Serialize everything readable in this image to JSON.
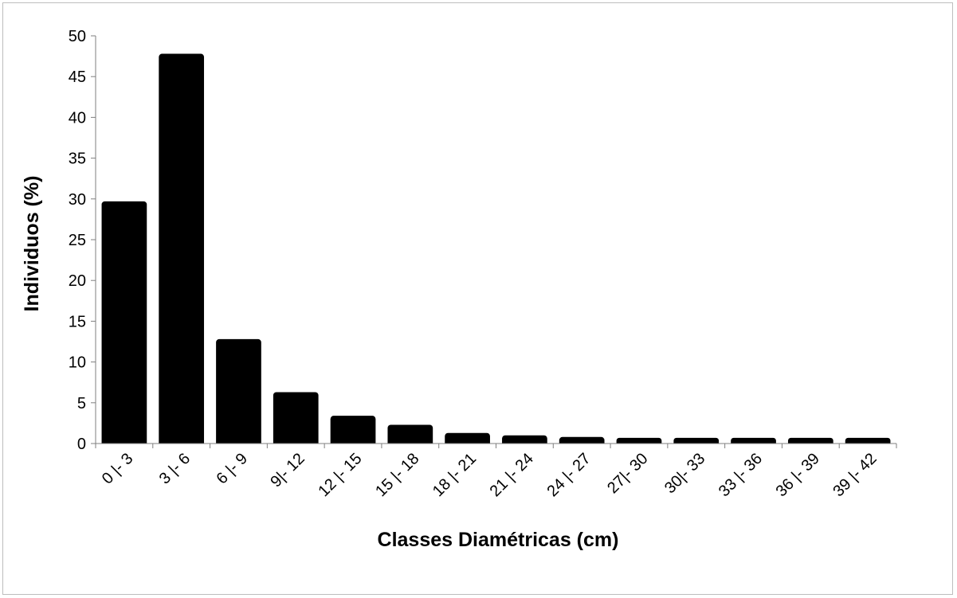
{
  "chart_data": {
    "type": "bar",
    "title": "",
    "xlabel": "Classes Diamétricas (cm)",
    "ylabel": "Individuos (%)",
    "categories": [
      "0 |- 3",
      "3 |- 6",
      "6 |- 9",
      "9|- 12",
      "12 |- 15",
      "15 |- 18",
      "18 |- 21",
      "21 |- 24",
      "24 |- 27",
      "27|- 30",
      "30|- 33",
      "33 |- 36",
      "36 |- 39",
      "39 |- 42"
    ],
    "values": [
      29.7,
      47.8,
      12.8,
      6.3,
      3.4,
      2.3,
      1.3,
      1.0,
      0.8,
      0.7,
      0.7,
      0.7,
      0.7,
      0.7
    ],
    "ylim": [
      0,
      50
    ],
    "yticks": [
      0,
      5,
      10,
      15,
      20,
      25,
      30,
      35,
      40,
      45,
      50
    ],
    "grid": false,
    "legend": "none",
    "bar_color": "#000000",
    "axis_color": "#7f7f7f"
  }
}
